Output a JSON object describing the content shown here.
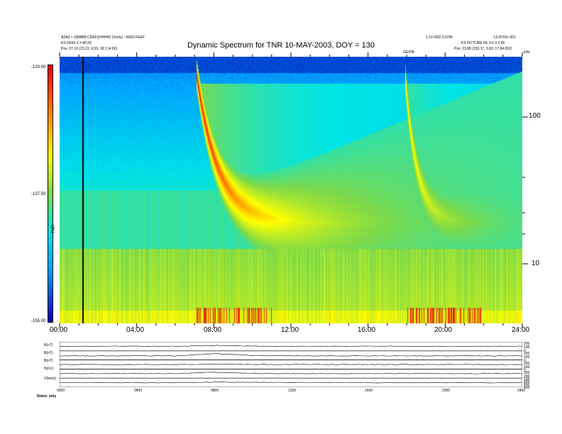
{
  "chart_data": [
    {
      "type": "heatmap",
      "title": "Dynamic Spectrum for TNR 10-MAY-2003, DOY = 130",
      "x_ticks": [
        "00:00",
        "04:00",
        "08:00",
        "12:00",
        "16:00",
        "20:00",
        "24:00"
      ],
      "xlim": [
        0,
        24
      ],
      "y_scale": "log",
      "y_ticks": [
        "10",
        "100"
      ],
      "y_unit": "kHz",
      "colorbar_ticks": [
        "-120.00",
        "-137.50",
        "-155.00"
      ],
      "colorbar_label": "TNR",
      "colorbar_range": [
        -155,
        -120
      ],
      "colors": {
        "high": "#e60000",
        "orange": "#ff8000",
        "yellow": "#ffff00",
        "green": "#7cd94a",
        "cyan": "#00e5e5",
        "light_blue": "#00a0ff",
        "low": "#0000b0"
      },
      "features": [
        {
          "type": "type-III burst",
          "start_hour": 7.1,
          "peak_hour": 8.3
        },
        {
          "type": "type-III burst",
          "start_hour": 17.9,
          "peak_hour": 19.0
        },
        {
          "type": "data gap",
          "hour": 1.2
        }
      ],
      "header_left": [
        "A2A0 + 2(BBBB:CDEF)(HHHH) (Vooly) - AFE0 FEEF",
        "KS FEE0 3 = 80.00",
        "Pos: 27.10 (23.23, 9.53, 18.1 (4.02)"
      ],
      "header_right": [
        "1.10 VED 3.0700",
        "L3.8703+.501",
        "KS FICTURE FE 3.0 3.3 00",
        "Pos: 23.88 (233.17, 5.83, 17.84 052)"
      ],
      "marker_label": "GE/OB"
    },
    {
      "type": "line",
      "title": "",
      "x_ticks": [
        "0000",
        "0400",
        "0800",
        "1200",
        "1600",
        "2000",
        "2400"
      ],
      "xlim": [
        0,
        24
      ],
      "series": [
        {
          "name": "B(nT)",
          "values": [
            0.5,
            0.5,
            0.52,
            0.5,
            0.6,
            0.52,
            0.5,
            0.5,
            0.52,
            0.5,
            0.5,
            0.5,
            0.5
          ]
        },
        {
          "name": "B(nT)",
          "values": [
            0.45,
            0.45,
            0.46,
            0.45,
            0.7,
            0.5,
            0.46,
            0.45,
            0.45,
            0.46,
            0.45,
            0.45,
            0.45
          ]
        },
        {
          "name": "B(nT)",
          "values": [
            0.5,
            0.5,
            0.5,
            0.5,
            0.55,
            0.5,
            0.5,
            0.5,
            0.5,
            0.5,
            0.5,
            0.5,
            0.5
          ]
        },
        {
          "name": "N(/cc)",
          "values": [
            0.5,
            0.5,
            0.5,
            0.5,
            0.65,
            0.52,
            0.5,
            0.5,
            0.5,
            0.5,
            0.5,
            0.5,
            0.5
          ]
        },
        {
          "name": "V(km/s)",
          "values": [
            0.5,
            0.5,
            0.5,
            0.5,
            0.55,
            0.55,
            0.52,
            0.52,
            0.5,
            0.5,
            0.5,
            0.5,
            0.5
          ]
        }
      ],
      "right_axis_labels": [
        "200",
        "100",
        "0",
        "200",
        "100",
        "0",
        "200",
        "100",
        "0",
        "300",
        "200",
        "100",
        "800",
        "600",
        "400"
      ],
      "footer": "Notes: only"
    }
  ]
}
